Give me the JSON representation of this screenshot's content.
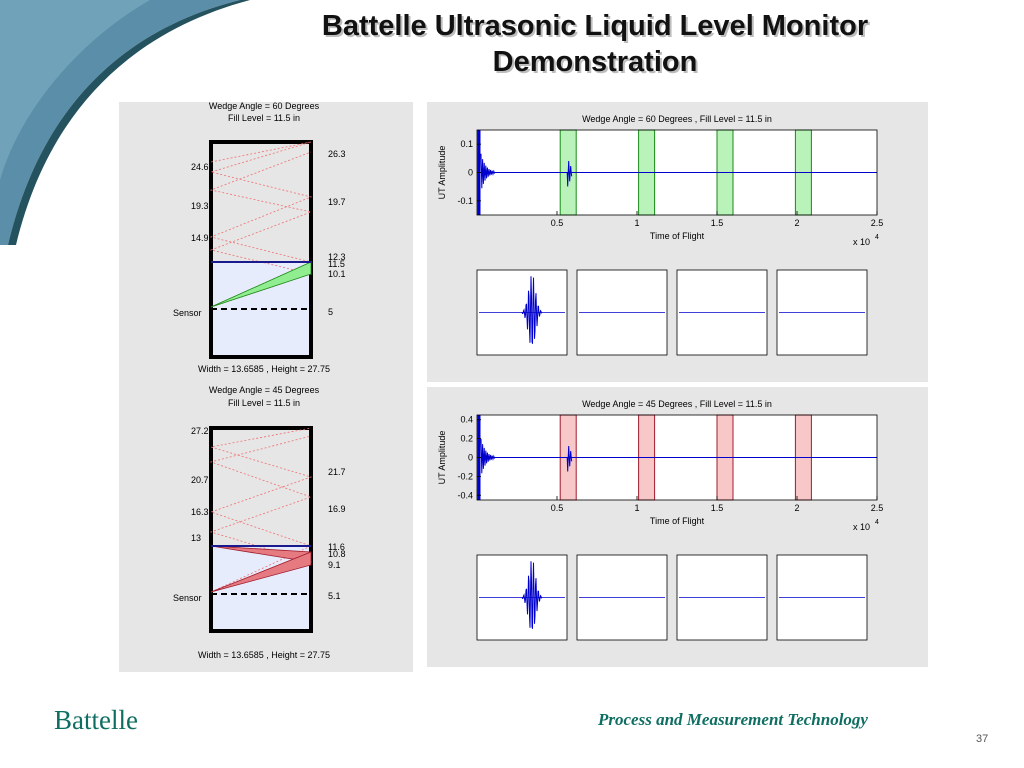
{
  "slide": {
    "title_line1": "Battelle Ultrasonic Liquid Level Monitor",
    "title_line2": "Demonstration",
    "brand": "Battelle",
    "footer": "Process and Measurement Technology",
    "page_number": "37",
    "colors": {
      "accent_teal": "#0f6e62",
      "panel_bg": "#e6e6e6",
      "trace_blue": "#0000cc",
      "green_fill": "#90ee90",
      "red_fill": "#e57a80"
    }
  },
  "tanks": [
    {
      "title_line1": "Wedge Angle = 60 Degrees",
      "title_line2": "Fill Level = 11.5 in",
      "footer": "Width = 13.6585 , Height = 27.75",
      "sensor_label": "Sensor",
      "left_labels": [
        "24.6",
        "19.3",
        "14.9"
      ],
      "right_labels": [
        "26.3",
        "19.7",
        "12.3",
        "11.5",
        "10.1",
        "5"
      ],
      "wedge_color": "green"
    },
    {
      "title_line1": "Wedge Angle = 45 Degrees",
      "title_line2": "Fill Level = 11.5 in",
      "footer": "Width = 13.6585 , Height = 27.75",
      "sensor_label": "Sensor",
      "left_labels": [
        "27.2",
        "20.7",
        "16.3",
        "13"
      ],
      "right_labels": [
        "21.7",
        "16.9",
        "11.6",
        "10.8",
        "9.1",
        "5.1"
      ],
      "wedge_color": "red"
    }
  ],
  "chart_data": [
    {
      "type": "line",
      "title": "Wedge Angle = 60 Degrees , Fill Level = 11.5 in",
      "xlabel": "Time of Flight",
      "ylabel": "UT Amplitude",
      "x_exponent_label": "x 10",
      "x_exponent_power": "4",
      "xlim": [
        0,
        2.5
      ],
      "ylim": [
        -0.15,
        0.15
      ],
      "xticks": [
        "0.5",
        "1",
        "1.5",
        "2",
        "2.5"
      ],
      "yticks": [
        "0.1",
        "0",
        "-0.1"
      ],
      "echo_windows": [
        0.52,
        1.01,
        1.5,
        1.99
      ],
      "window_color": "green",
      "sub_plots": 4
    },
    {
      "type": "line",
      "title": "Wedge Angle = 45 Degrees , Fill Level = 11.5 in",
      "xlabel": "Time of Flight",
      "ylabel": "UT Amplitude",
      "x_exponent_label": "x 10",
      "x_exponent_power": "4",
      "xlim": [
        0,
        2.5
      ],
      "ylim": [
        -0.45,
        0.45
      ],
      "xticks": [
        "0.5",
        "1",
        "1.5",
        "2",
        "2.5"
      ],
      "yticks": [
        "0.4",
        "0.2",
        "0",
        "-0.2",
        "-0.4"
      ],
      "echo_windows": [
        0.52,
        1.01,
        1.5,
        1.99
      ],
      "window_color": "red",
      "sub_plots": 4
    }
  ]
}
